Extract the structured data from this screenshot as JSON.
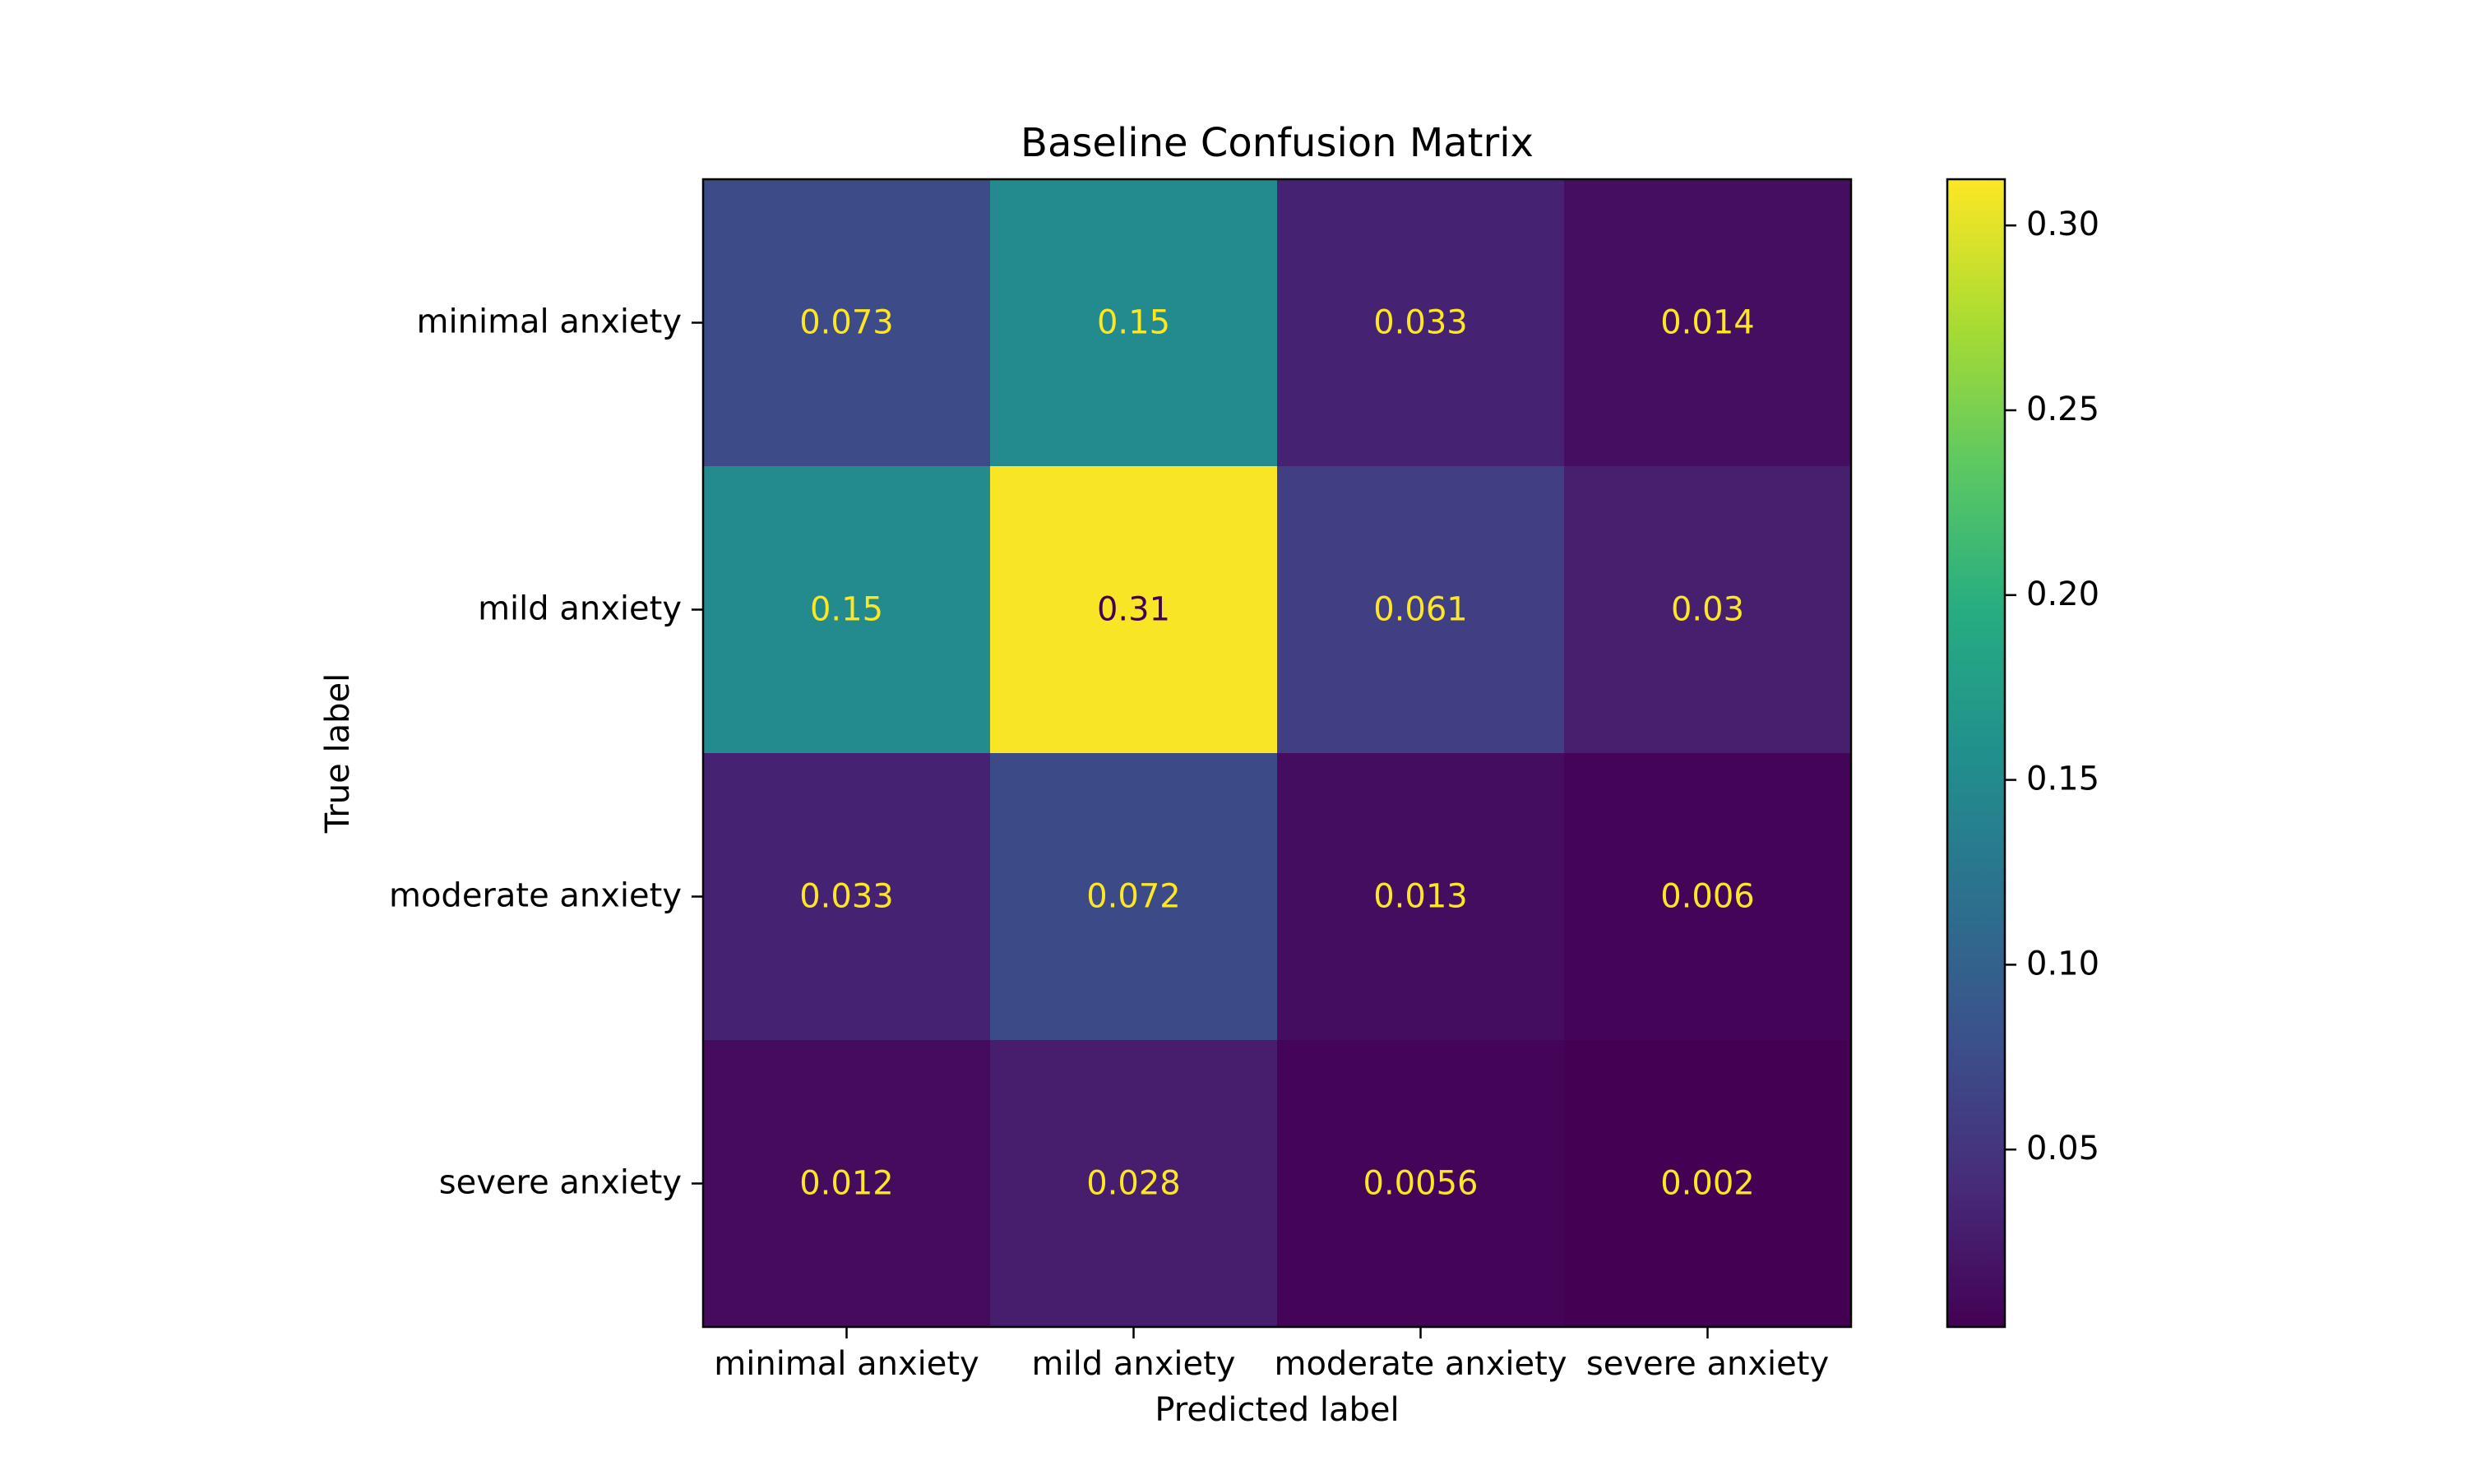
{
  "chart_data": {
    "type": "heatmap",
    "title": "Baseline Confusion Matrix",
    "xlabel": "Predicted label",
    "ylabel": "True label",
    "x_categories": [
      "minimal anxiety",
      "mild anxiety",
      "moderate anxiety",
      "severe anxiety"
    ],
    "y_categories": [
      "minimal anxiety",
      "mild anxiety",
      "moderate anxiety",
      "severe anxiety"
    ],
    "values": [
      [
        0.073,
        0.15,
        0.033,
        0.014
      ],
      [
        0.15,
        0.31,
        0.061,
        0.03
      ],
      [
        0.033,
        0.072,
        0.013,
        0.006
      ],
      [
        0.012,
        0.028,
        0.0056,
        0.002
      ]
    ],
    "value_labels": [
      [
        "0.073",
        "0.15",
        "0.033",
        "0.014"
      ],
      [
        "0.15",
        "0.31",
        "0.061",
        "0.03"
      ],
      [
        "0.033",
        "0.072",
        "0.013",
        "0.006"
      ],
      [
        "0.012",
        "0.028",
        "0.0056",
        "0.002"
      ]
    ],
    "colormap": "viridis",
    "colorbar": {
      "range": [
        0.002,
        0.3125
      ],
      "ticks": [
        0.05,
        0.1,
        0.15,
        0.2,
        0.25,
        0.3
      ],
      "tick_labels": [
        "0.05",
        "0.10",
        "0.15",
        "0.20",
        "0.25",
        "0.30"
      ]
    },
    "text_colors": {
      "light": "#fde725",
      "dark": "#440154"
    },
    "grid": false
  }
}
